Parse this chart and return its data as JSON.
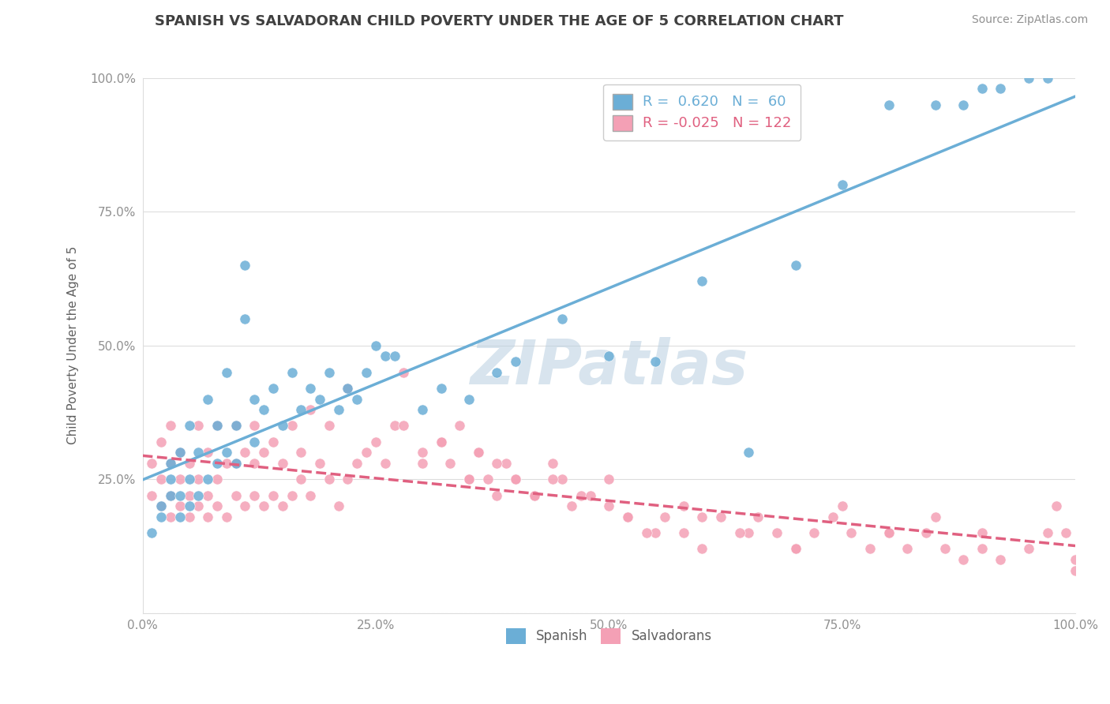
{
  "title": "SPANISH VS SALVADORAN CHILD POVERTY UNDER THE AGE OF 5 CORRELATION CHART",
  "source": "Source: ZipAtlas.com",
  "xlabel": "",
  "ylabel": "Child Poverty Under the Age of 5",
  "xlim": [
    0.0,
    1.0
  ],
  "ylim": [
    0.0,
    1.0
  ],
  "xticks": [
    0.0,
    0.25,
    0.5,
    0.75,
    1.0
  ],
  "xticklabels": [
    "0.0%",
    "25.0%",
    "50.0%",
    "75.0%",
    "100.0%"
  ],
  "yticks": [
    0.25,
    0.5,
    0.75,
    1.0
  ],
  "yticklabels": [
    "25.0%",
    "50.0%",
    "75.0%",
    "100.0%"
  ],
  "watermark": "ZIPatlas",
  "spanish_color": "#6baed6",
  "salvadoran_color": "#f4a0b5",
  "salvadoran_line_color": "#e06080",
  "spanish_R": 0.62,
  "spanish_N": 60,
  "salvadoran_R": -0.025,
  "salvadoran_N": 122,
  "spanish_points_x": [
    0.01,
    0.02,
    0.02,
    0.03,
    0.03,
    0.03,
    0.04,
    0.04,
    0.04,
    0.05,
    0.05,
    0.05,
    0.06,
    0.06,
    0.07,
    0.07,
    0.08,
    0.08,
    0.09,
    0.09,
    0.1,
    0.1,
    0.11,
    0.11,
    0.12,
    0.12,
    0.13,
    0.14,
    0.15,
    0.16,
    0.17,
    0.18,
    0.19,
    0.2,
    0.21,
    0.22,
    0.23,
    0.24,
    0.25,
    0.26,
    0.27,
    0.3,
    0.32,
    0.35,
    0.38,
    0.4,
    0.45,
    0.5,
    0.55,
    0.6,
    0.65,
    0.7,
    0.75,
    0.8,
    0.85,
    0.88,
    0.9,
    0.92,
    0.95,
    0.97
  ],
  "spanish_points_y": [
    0.15,
    0.18,
    0.2,
    0.22,
    0.25,
    0.28,
    0.18,
    0.22,
    0.3,
    0.2,
    0.25,
    0.35,
    0.22,
    0.3,
    0.25,
    0.4,
    0.28,
    0.35,
    0.3,
    0.45,
    0.28,
    0.35,
    0.55,
    0.65,
    0.32,
    0.4,
    0.38,
    0.42,
    0.35,
    0.45,
    0.38,
    0.42,
    0.4,
    0.45,
    0.38,
    0.42,
    0.4,
    0.45,
    0.5,
    0.48,
    0.48,
    0.38,
    0.42,
    0.4,
    0.45,
    0.47,
    0.55,
    0.48,
    0.47,
    0.62,
    0.3,
    0.65,
    0.8,
    0.95,
    0.95,
    0.95,
    0.98,
    0.98,
    1.0,
    1.0
  ],
  "salvadoran_points_x": [
    0.01,
    0.01,
    0.02,
    0.02,
    0.02,
    0.03,
    0.03,
    0.03,
    0.03,
    0.04,
    0.04,
    0.04,
    0.05,
    0.05,
    0.05,
    0.06,
    0.06,
    0.06,
    0.07,
    0.07,
    0.07,
    0.08,
    0.08,
    0.08,
    0.09,
    0.09,
    0.1,
    0.1,
    0.1,
    0.11,
    0.11,
    0.12,
    0.12,
    0.12,
    0.13,
    0.13,
    0.14,
    0.14,
    0.15,
    0.15,
    0.16,
    0.16,
    0.17,
    0.17,
    0.18,
    0.18,
    0.19,
    0.2,
    0.2,
    0.21,
    0.22,
    0.22,
    0.23,
    0.24,
    0.25,
    0.26,
    0.27,
    0.28,
    0.3,
    0.32,
    0.33,
    0.34,
    0.35,
    0.36,
    0.37,
    0.38,
    0.39,
    0.4,
    0.42,
    0.44,
    0.45,
    0.47,
    0.5,
    0.52,
    0.55,
    0.58,
    0.6,
    0.65,
    0.7,
    0.75,
    0.8,
    0.85,
    0.9,
    0.92,
    0.95,
    0.97,
    0.98,
    0.99,
    1.0,
    1.0,
    0.28,
    0.3,
    0.32,
    0.35,
    0.36,
    0.38,
    0.4,
    0.42,
    0.44,
    0.46,
    0.48,
    0.5,
    0.52,
    0.54,
    0.56,
    0.58,
    0.6,
    0.62,
    0.64,
    0.66,
    0.68,
    0.7,
    0.72,
    0.74,
    0.76,
    0.78,
    0.8,
    0.82,
    0.84,
    0.86,
    0.88,
    0.9
  ],
  "salvadoran_points_y": [
    0.22,
    0.28,
    0.2,
    0.25,
    0.32,
    0.18,
    0.22,
    0.28,
    0.35,
    0.2,
    0.25,
    0.3,
    0.18,
    0.22,
    0.28,
    0.2,
    0.25,
    0.35,
    0.18,
    0.22,
    0.3,
    0.2,
    0.25,
    0.35,
    0.18,
    0.28,
    0.22,
    0.28,
    0.35,
    0.2,
    0.3,
    0.22,
    0.28,
    0.35,
    0.2,
    0.3,
    0.22,
    0.32,
    0.2,
    0.28,
    0.22,
    0.35,
    0.25,
    0.3,
    0.22,
    0.38,
    0.28,
    0.25,
    0.35,
    0.2,
    0.25,
    0.42,
    0.28,
    0.3,
    0.32,
    0.28,
    0.35,
    0.45,
    0.3,
    0.32,
    0.28,
    0.35,
    0.25,
    0.3,
    0.25,
    0.22,
    0.28,
    0.25,
    0.22,
    0.28,
    0.25,
    0.22,
    0.25,
    0.18,
    0.15,
    0.2,
    0.18,
    0.15,
    0.12,
    0.2,
    0.15,
    0.18,
    0.15,
    0.1,
    0.12,
    0.15,
    0.2,
    0.15,
    0.1,
    0.08,
    0.35,
    0.28,
    0.32,
    0.25,
    0.3,
    0.28,
    0.25,
    0.22,
    0.25,
    0.2,
    0.22,
    0.2,
    0.18,
    0.15,
    0.18,
    0.15,
    0.12,
    0.18,
    0.15,
    0.18,
    0.15,
    0.12,
    0.15,
    0.18,
    0.15,
    0.12,
    0.15,
    0.12,
    0.15,
    0.12,
    0.1,
    0.12
  ],
  "background_color": "#ffffff",
  "grid_color": "#dddddd",
  "title_color": "#404040",
  "axis_label_color": "#606060",
  "tick_color": "#909090",
  "source_color": "#909090"
}
